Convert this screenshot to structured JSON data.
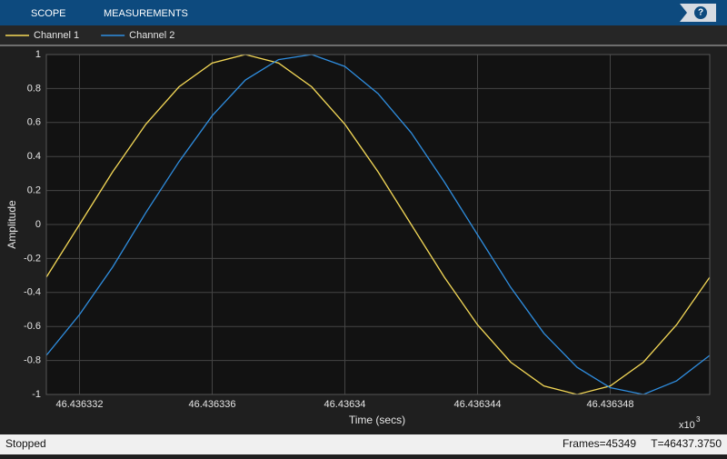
{
  "toolbar": {
    "tabs": [
      "SCOPE",
      "MEASUREMENTS"
    ],
    "help": "?"
  },
  "chart_data": {
    "type": "line",
    "x_label": "Time (secs)",
    "y_label": "Amplitude",
    "x_exponent_base": "x10",
    "x_exponent": "3",
    "x": [
      46.436331,
      46.436332,
      46.436333,
      46.436334,
      46.436335,
      46.436336,
      46.436337,
      46.436338,
      46.436339,
      46.43634,
      46.436341,
      46.436342,
      46.436343,
      46.436344,
      46.436345,
      46.436346,
      46.436347,
      46.436348,
      46.436349,
      46.43635,
      46.436351
    ],
    "series": [
      {
        "name": "Channel 1",
        "color": "#f5d957",
        "values": [
          -0.31,
          0.0,
          0.31,
          0.59,
          0.81,
          0.95,
          1.0,
          0.95,
          0.81,
          0.59,
          0.31,
          0.0,
          -0.31,
          -0.59,
          -0.81,
          -0.95,
          -1.0,
          -0.95,
          -0.81,
          -0.59,
          -0.31
        ]
      },
      {
        "name": "Channel 2",
        "color": "#2f8ee0",
        "values": [
          -0.77,
          -0.53,
          -0.25,
          0.07,
          0.37,
          0.64,
          0.85,
          0.97,
          1.0,
          0.93,
          0.77,
          0.54,
          0.25,
          -0.06,
          -0.37,
          -0.64,
          -0.84,
          -0.96,
          -1.0,
          -0.92,
          -0.77
        ]
      }
    ],
    "xlim": [
      46.436331,
      46.436351
    ],
    "xticks": [
      46.436332,
      46.436336,
      46.43634,
      46.436344,
      46.436348
    ],
    "ylim": [
      -1,
      1
    ],
    "yticks": [
      -1,
      -0.8,
      -0.6,
      -0.4,
      -0.2,
      0,
      0.2,
      0.4,
      0.6,
      0.8,
      1
    ],
    "grid": true
  },
  "status": {
    "state": "Stopped",
    "frames": "Frames=45349",
    "time": "T=46437.3750"
  }
}
